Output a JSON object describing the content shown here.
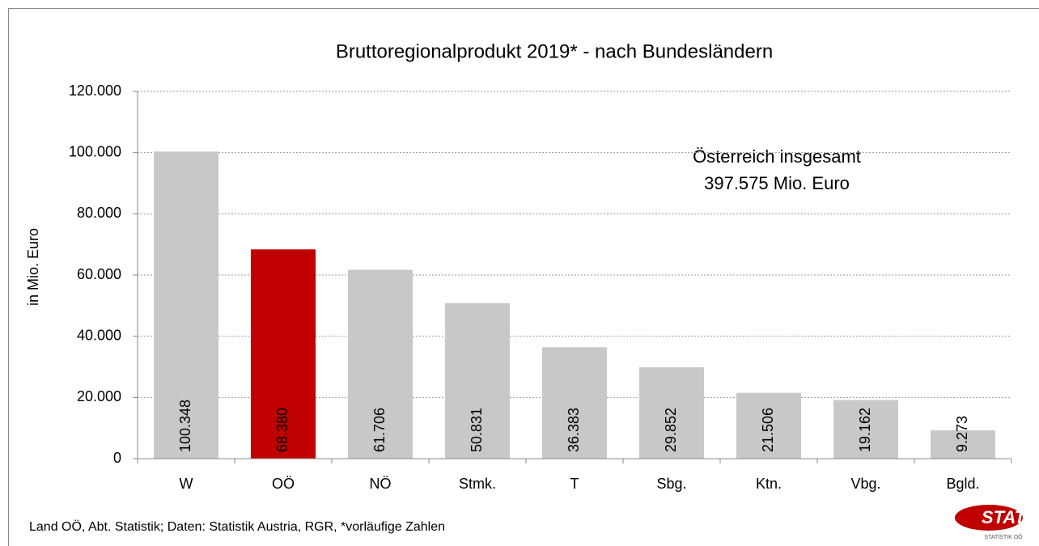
{
  "chart_data": {
    "type": "bar",
    "title": "Bruttoregionalprodukt 2019* - nach Bundesländern",
    "y_label": "in Mio. Euro",
    "categories": [
      "W",
      "OÖ",
      "NÖ",
      "Stmk.",
      "T",
      "Sbg.",
      "Ktn.",
      "Vbg.",
      "Bgld."
    ],
    "values": [
      100348,
      68380,
      61706,
      50831,
      36383,
      29852,
      21506,
      19162,
      9273
    ],
    "value_labels": [
      "100.348",
      "68.380",
      "61.706",
      "50.831",
      "36.383",
      "29.852",
      "21.506",
      "19.162",
      "9.273"
    ],
    "colors": [
      "#c8c8c8",
      "#c00000",
      "#c8c8c8",
      "#c8c8c8",
      "#c8c8c8",
      "#c8c8c8",
      "#c8c8c8",
      "#c8c8c8",
      "#c8c8c8"
    ],
    "ylim": [
      0,
      120000
    ],
    "yticks": [
      0,
      {
        "value": 20000,
        "label": "20.000"
      },
      {
        "value": 40000,
        "label": "40.000"
      },
      {
        "value": 60000,
        "label": "60.000"
      },
      {
        "value": 80000,
        "label": "80.000"
      },
      {
        "value": 100000,
        "label": "100.000"
      },
      {
        "value": 120000,
        "label": "120.000"
      }
    ],
    "grid": true,
    "annotations": [
      "Österreich insgesamt",
      "397.575 Mio. Euro"
    ],
    "source": "Land OÖ, Abt. Statistik; Daten: Statistik Austria, RGR, *vorläufige Zahlen",
    "logo": [
      "STAT",
      "STATISTIK OÖ"
    ]
  }
}
